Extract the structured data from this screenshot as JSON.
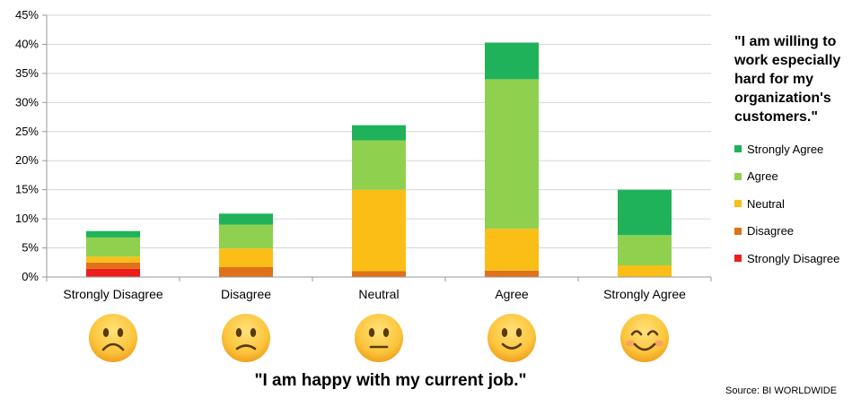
{
  "chart_data": {
    "type": "bar",
    "stacked": true,
    "categories": [
      "Strongly Disagree",
      "Disagree",
      "Neutral",
      "Agree",
      "Strongly Agree"
    ],
    "series": [
      {
        "name": "Strongly Disagree",
        "color": "#ee1d1d",
        "values": [
          1.4,
          0,
          0,
          0,
          0
        ]
      },
      {
        "name": "Disagree",
        "color": "#e0711a",
        "values": [
          1.1,
          1.7,
          1.0,
          1.1,
          0
        ]
      },
      {
        "name": "Neutral",
        "color": "#fbbe17",
        "values": [
          1.0,
          3.2,
          14.0,
          7.2,
          2.0
        ]
      },
      {
        "name": "Agree",
        "color": "#8fd14f",
        "values": [
          3.3,
          4.1,
          8.5,
          25.7,
          5.2
        ]
      },
      {
        "name": "Strongly Agree",
        "color": "#1fb25a",
        "values": [
          1.1,
          1.9,
          2.6,
          6.3,
          7.8
        ]
      }
    ],
    "ylim": [
      0,
      45
    ],
    "yticks": [
      "0%",
      "5%",
      "10%",
      "15%",
      "20%",
      "25%",
      "30%",
      "35%",
      "40%",
      "45%"
    ],
    "grid": true,
    "legend_title": "\"I am willing to work especially hard for my organization's customers.\"",
    "legend_position": "right",
    "xlabel": "\"I am happy with my current job.\"",
    "source": "Source: BI WORLDWIDE",
    "emoji": [
      {
        "name": "frowning-face-icon",
        "mood": "very-sad"
      },
      {
        "name": "slightly-frowning-face-icon",
        "mood": "sad"
      },
      {
        "name": "neutral-face-icon",
        "mood": "neutral"
      },
      {
        "name": "slightly-smiling-face-icon",
        "mood": "happy"
      },
      {
        "name": "smiling-face-with-smiling-eyes-icon",
        "mood": "very-happy"
      }
    ]
  }
}
